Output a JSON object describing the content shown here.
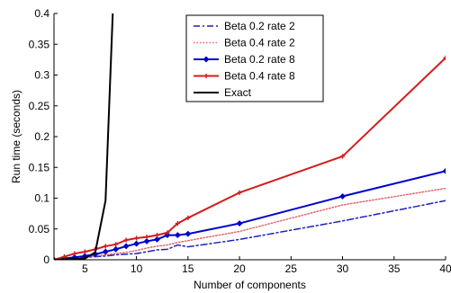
{
  "chart_data": {
    "type": "line",
    "xlabel": "Number of components",
    "ylabel": "Run time (seconds)",
    "xlim": [
      2,
      40
    ],
    "ylim": [
      0,
      0.4
    ],
    "x_ticks": [
      5,
      10,
      15,
      20,
      25,
      30,
      35,
      40
    ],
    "y_ticks": [
      0,
      0.05,
      0.1,
      0.15,
      0.2,
      0.25,
      0.3,
      0.35,
      0.4
    ],
    "x_tick_labels": [
      "5",
      "10",
      "15",
      "20",
      "25",
      "30",
      "35",
      "40"
    ],
    "y_tick_labels": [
      "0",
      "0.05",
      "0.1",
      "0.15",
      "0.2",
      "0.25",
      "0.3",
      "0.35",
      "0.4"
    ],
    "grid": false,
    "legend_position": "top-center",
    "series": [
      {
        "name": "Beta 0.2 rate 2",
        "color": "#1f1fbf",
        "style": "dashdot",
        "marker": "none",
        "x": [
          2,
          3,
          4,
          5,
          6,
          7,
          8,
          9,
          10,
          11,
          12,
          13,
          14,
          15,
          20,
          30,
          40
        ],
        "y": [
          0,
          0.002,
          0.003,
          0.004,
          0.005,
          0.006,
          0.008,
          0.009,
          0.01,
          0.013,
          0.016,
          0.017,
          0.024,
          0.021,
          0.033,
          0.063,
          0.096
        ]
      },
      {
        "name": "Beta 0.4 rate 2",
        "color": "#e06a6a",
        "style": "dotted",
        "marker": "none",
        "x": [
          2,
          3,
          4,
          5,
          6,
          7,
          8,
          9,
          10,
          11,
          12,
          13,
          14,
          15,
          20,
          30,
          40
        ],
        "y": [
          0,
          0.002,
          0.004,
          0.005,
          0.006,
          0.008,
          0.01,
          0.012,
          0.015,
          0.019,
          0.022,
          0.024,
          0.028,
          0.031,
          0.046,
          0.089,
          0.116
        ]
      },
      {
        "name": "Beta 0.2 rate 8",
        "color": "#0000cc",
        "style": "solid",
        "marker": "diamond",
        "x": [
          2,
          3,
          4,
          5,
          6,
          7,
          8,
          9,
          10,
          11,
          12,
          13,
          14,
          15,
          20,
          30,
          40
        ],
        "y": [
          0,
          0.002,
          0.004,
          0.006,
          0.009,
          0.013,
          0.017,
          0.022,
          0.026,
          0.03,
          0.033,
          0.04,
          0.04,
          0.042,
          0.059,
          0.103,
          0.144
        ]
      },
      {
        "name": "Beta 0.4 rate 8",
        "color": "#d41c1c",
        "style": "solid",
        "marker": "plus",
        "x": [
          2,
          3,
          4,
          5,
          6,
          7,
          8,
          9,
          10,
          11,
          12,
          13,
          14,
          15,
          20,
          30,
          40
        ],
        "y": [
          0,
          0.005,
          0.01,
          0.013,
          0.017,
          0.022,
          0.025,
          0.032,
          0.035,
          0.037,
          0.04,
          0.044,
          0.059,
          0.068,
          0.109,
          0.168,
          0.328
        ]
      },
      {
        "name": "Exact",
        "color": "#000000",
        "style": "solid",
        "marker": "none",
        "x": [
          2,
          3,
          4,
          5,
          6,
          7,
          7.7
        ],
        "y": [
          0,
          0.0005,
          0.001,
          0.002,
          0.012,
          0.096,
          0.4
        ]
      }
    ]
  }
}
